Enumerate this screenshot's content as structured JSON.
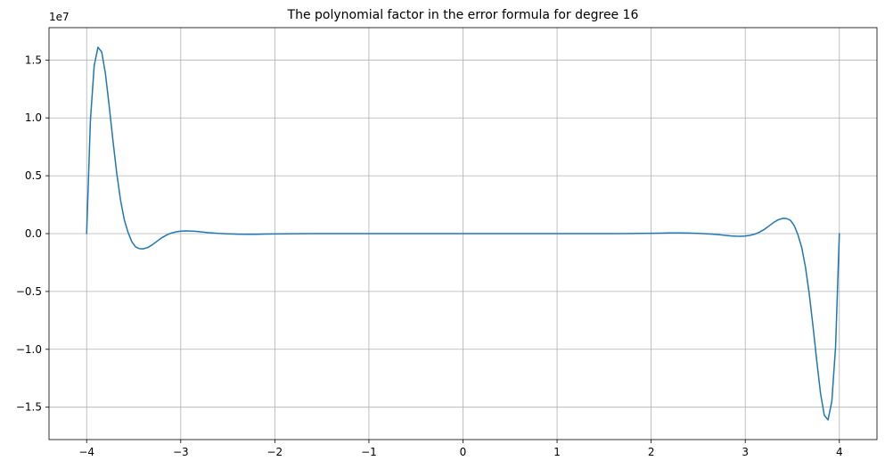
{
  "chart_data": {
    "type": "line",
    "title": "The polynomial factor in the error formula for degree 16",
    "xlabel": "",
    "ylabel": "",
    "xlim": [
      -4.4,
      4.4
    ],
    "ylim": [
      -17800000,
      17800000
    ],
    "y_offset_label": "1e7",
    "grid": true,
    "x_ticks": [
      -4,
      -3,
      -2,
      -1,
      0,
      1,
      2,
      3,
      4
    ],
    "x_tick_labels": [
      "−4",
      "−3",
      "−2",
      "−1",
      "0",
      "1",
      "2",
      "3",
      "4"
    ],
    "y_ticks": [
      -15000000,
      -10000000,
      -5000000,
      0,
      5000000,
      10000000,
      15000000
    ],
    "y_tick_labels": [
      "−1.5",
      "−1.0",
      "−0.5",
      "0.0",
      "0.5",
      "1.0",
      "1.5"
    ],
    "series_color": "#1f77b4",
    "series": [
      {
        "x": [
          -4.0,
          -3.96,
          -3.92,
          -3.88,
          -3.84,
          -3.8,
          -3.76,
          -3.72,
          -3.68,
          -3.64,
          -3.6,
          -3.56,
          -3.52,
          -3.48,
          -3.44,
          -3.4,
          -3.35,
          -3.3,
          -3.25,
          -3.2,
          -3.15,
          -3.1,
          -3.05,
          -3.0,
          -2.95,
          -2.9,
          -2.85,
          -2.8,
          -2.75,
          -2.7,
          -2.6,
          -2.5,
          -2.4,
          -2.3,
          -2.2,
          -2.1,
          -2.0,
          -1.8,
          -1.6,
          -1.4,
          -1.2,
          -1.0,
          -0.8,
          -0.6,
          -0.4,
          -0.2,
          0.0,
          0.2,
          0.4,
          0.6,
          0.8,
          1.0,
          1.2,
          1.4,
          1.6,
          1.8,
          2.0,
          2.1,
          2.2,
          2.3,
          2.4,
          2.5,
          2.6,
          2.7,
          2.75,
          2.8,
          2.85,
          2.9,
          2.95,
          3.0,
          3.05,
          3.1,
          3.15,
          3.2,
          3.25,
          3.3,
          3.35,
          3.4,
          3.44,
          3.48,
          3.52,
          3.56,
          3.6,
          3.64,
          3.68,
          3.72,
          3.76,
          3.8,
          3.84,
          3.88,
          3.92,
          3.96,
          4.0
        ],
        "y": [
          0,
          9800000,
          14500000,
          16100000,
          15700000,
          13800000,
          11000000,
          8000000,
          5200000,
          2900000,
          1200000,
          100000,
          -700000,
          -1150000,
          -1300000,
          -1320000,
          -1200000,
          -950000,
          -650000,
          -350000,
          -120000,
          50000,
          150000,
          210000,
          230000,
          225000,
          200000,
          160000,
          120000,
          80000,
          20000,
          -20000,
          -50000,
          -60000,
          -55000,
          -40000,
          -25000,
          -10000,
          0,
          5000,
          2000,
          0,
          -2000,
          -1000,
          0,
          0,
          0,
          0,
          0,
          1000,
          2000,
          0,
          -2000,
          -5000,
          0,
          10000,
          25000,
          40000,
          55000,
          60000,
          50000,
          20000,
          -20000,
          -80000,
          -120000,
          -160000,
          -200000,
          -225000,
          -230000,
          -210000,
          -150000,
          -50000,
          120000,
          350000,
          650000,
          950000,
          1200000,
          1320000,
          1300000,
          1150000,
          700000,
          -100000,
          -1200000,
          -2900000,
          -5200000,
          -8000000,
          -11000000,
          -13800000,
          -15700000,
          -16100000,
          -14500000,
          -9800000,
          0
        ]
      }
    ]
  }
}
